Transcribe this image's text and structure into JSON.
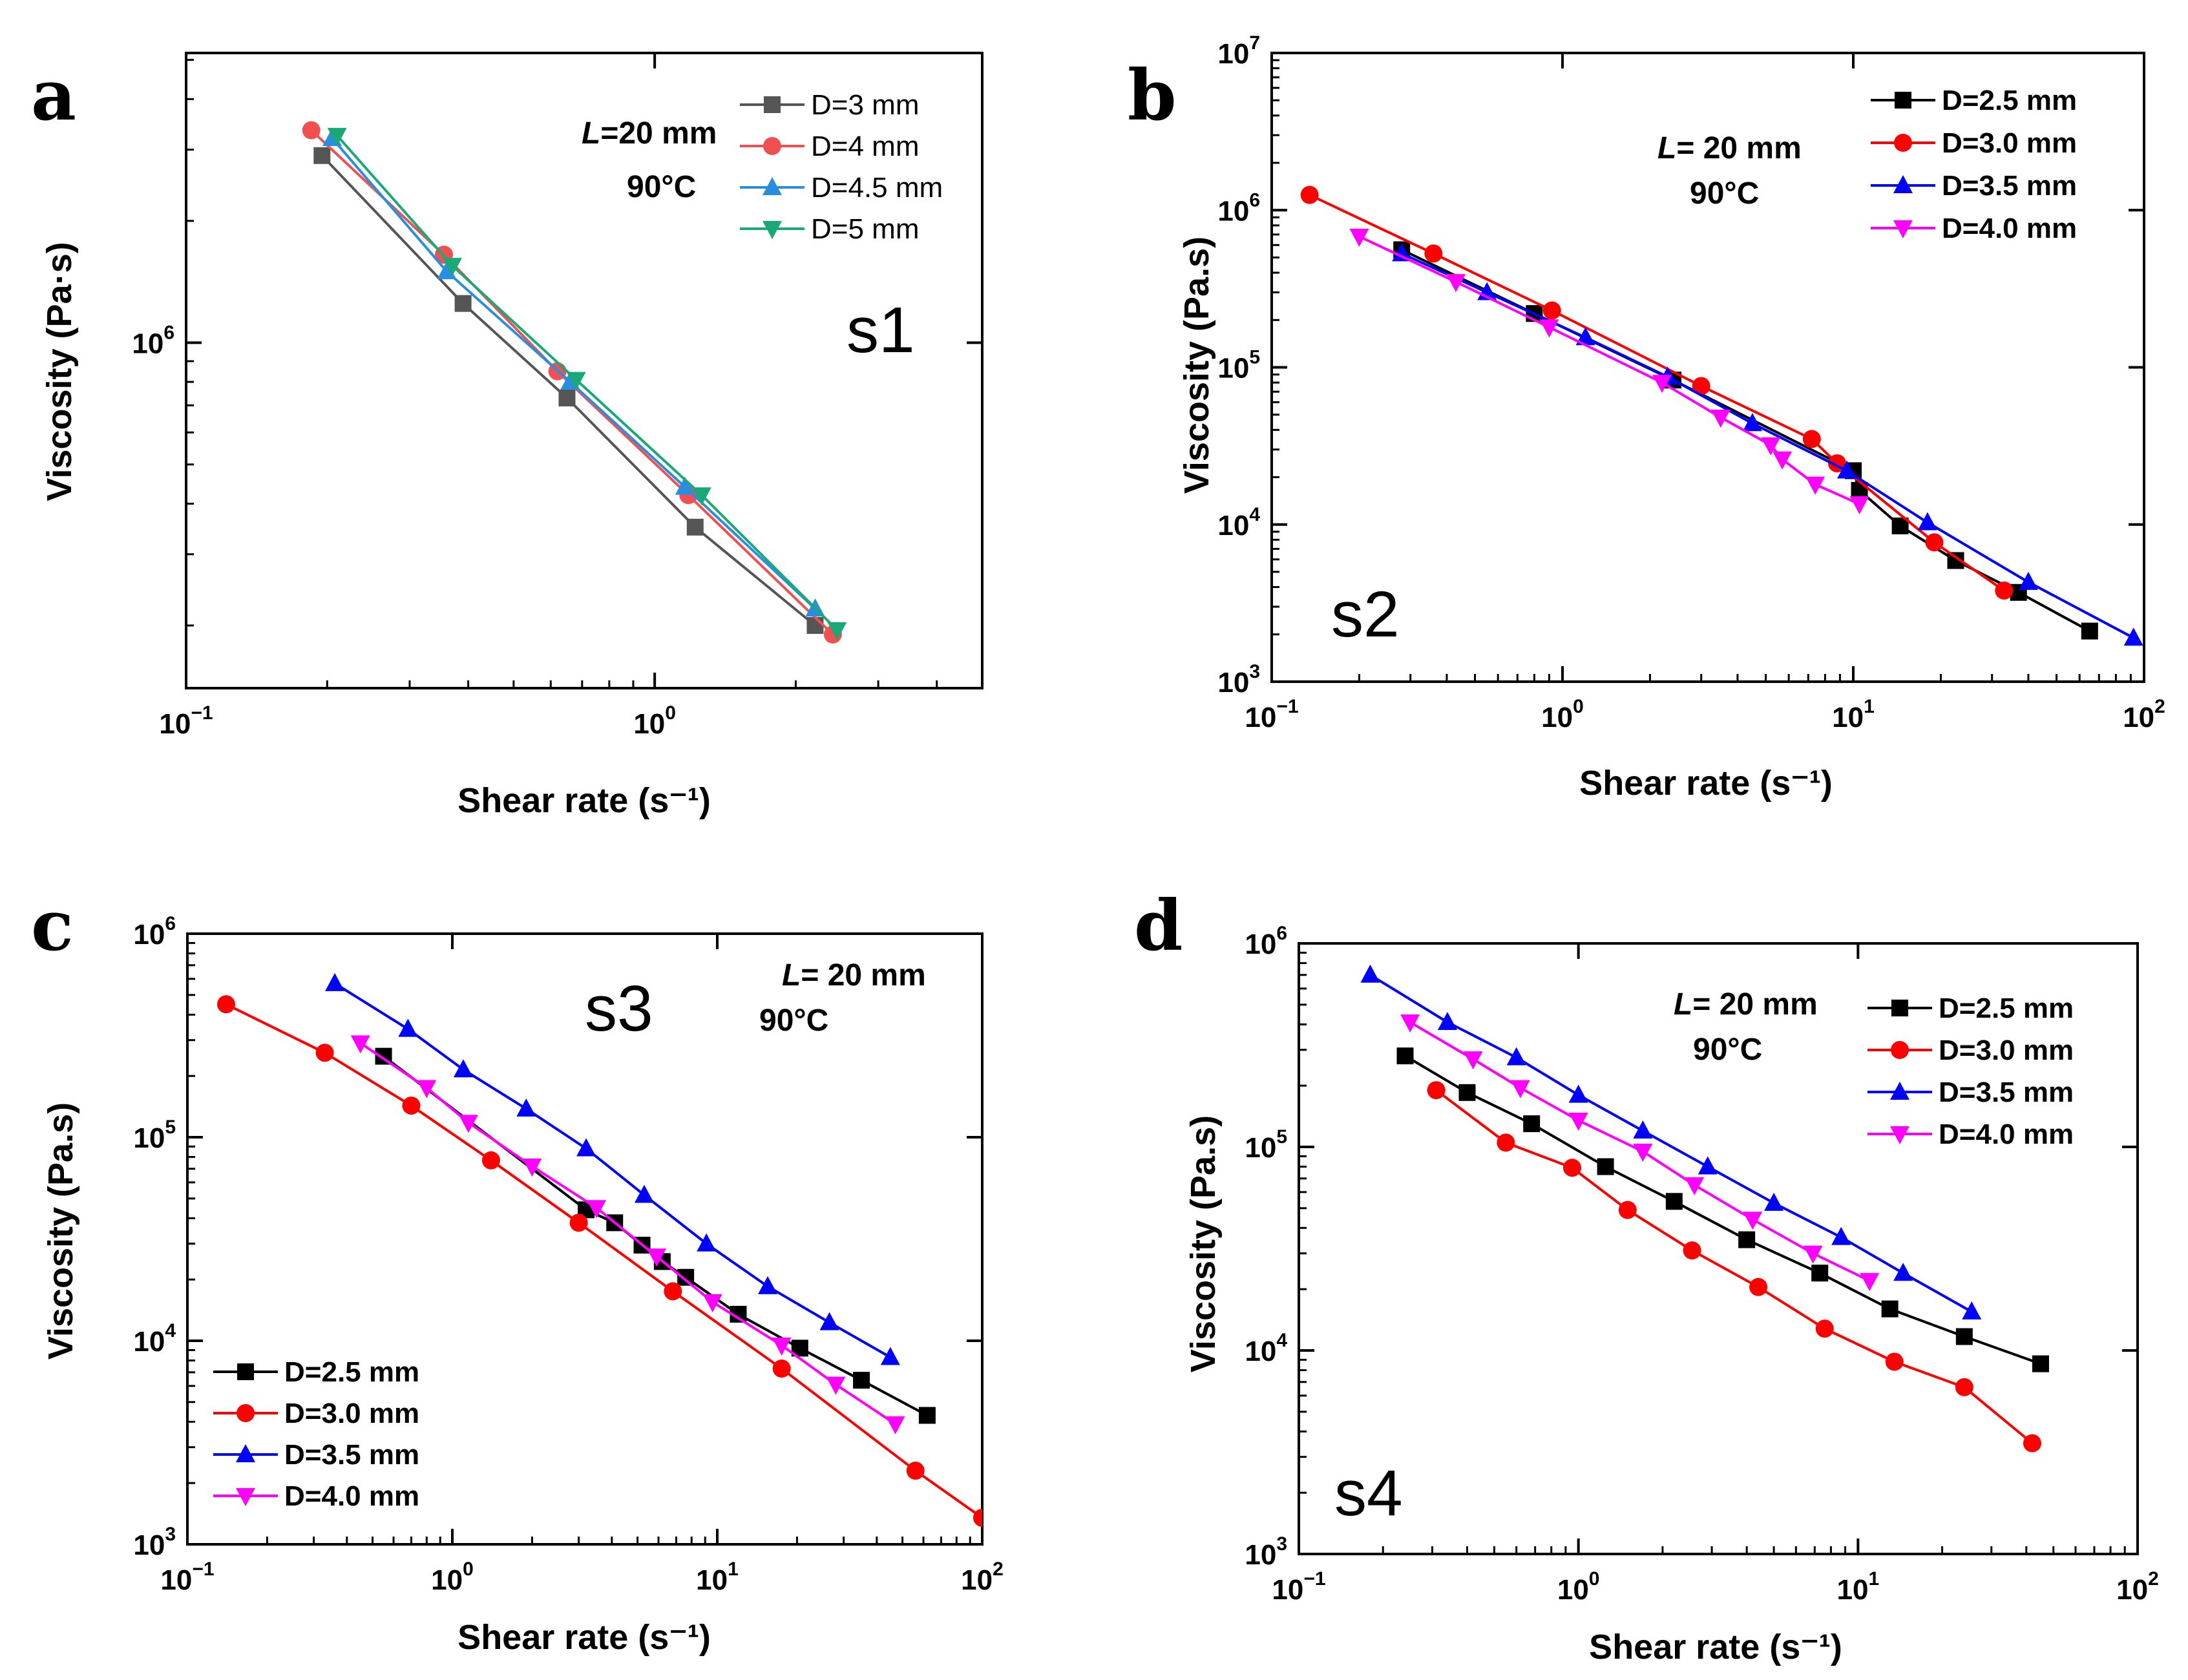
{
  "figure": {
    "panels": [
      "a",
      "b",
      "c",
      "d"
    ]
  },
  "chart_data": [
    {
      "panel": "a",
      "type": "line",
      "xscale": "log",
      "yscale": "log",
      "xlabel": "Shear rate (s⁻¹)",
      "ylabel": "Viscosity (Pa·s)",
      "xlim": [
        0.1,
        5
      ],
      "ylim": [
        140000,
        5200000
      ],
      "xticks": [
        {
          "v": 0.1,
          "mant": "10",
          "exp": "−1"
        },
        {
          "v": 1,
          "mant": "10",
          "exp": "0"
        }
      ],
      "yticks": [
        {
          "v": 1000000,
          "mant": "10",
          "exp": "6"
        }
      ],
      "minor_x": [
        0.2,
        0.3,
        0.4,
        0.5,
        0.6,
        0.7,
        0.8,
        0.9,
        2,
        3,
        4,
        5
      ],
      "minor_y": [
        200000,
        300000,
        400000,
        500000,
        600000,
        700000,
        800000,
        900000,
        2000000,
        3000000,
        4000000,
        5000000
      ],
      "annotation": {
        "L_letter": "L",
        "L_rest": "=20 mm",
        "temp": "90°C"
      },
      "sample": "s1",
      "bold_legend": false,
      "series": [
        {
          "name": "D=3 mm",
          "color": "#555555",
          "marker": "square",
          "x": [
            0.195,
            0.39,
            0.65,
            1.22,
            2.2
          ],
          "y": [
            2900000,
            1250000,
            730000,
            350000,
            200000
          ]
        },
        {
          "name": "D=4 mm",
          "color": "#f05050",
          "marker": "circle",
          "x": [
            0.185,
            0.355,
            0.62,
            1.18,
            2.4
          ],
          "y": [
            3350000,
            1650000,
            850000,
            420000,
            190000
          ]
        },
        {
          "name": "D=4.5 mm",
          "color": "#2a8ee0",
          "marker": "triangle-up",
          "x": [
            0.205,
            0.36,
            0.66,
            1.16,
            2.2
          ],
          "y": [
            3200000,
            1500000,
            800000,
            440000,
            220000
          ]
        },
        {
          "name": "D=5 mm",
          "color": "#1aa878",
          "marker": "triangle-down",
          "x": [
            0.21,
            0.37,
            0.68,
            1.26,
            2.45
          ],
          "y": [
            3250000,
            1550000,
            810000,
            420000,
            195000
          ]
        }
      ]
    },
    {
      "panel": "b",
      "type": "line",
      "xscale": "log",
      "yscale": "log",
      "xlabel": "Shear rate (s⁻¹)",
      "ylabel": "Viscosity (Pa.s)",
      "xlim": [
        0.1,
        100
      ],
      "ylim": [
        1000,
        10000000
      ],
      "xticks": [
        {
          "v": 0.1,
          "mant": "10",
          "exp": "−1"
        },
        {
          "v": 1,
          "mant": "10",
          "exp": "0"
        },
        {
          "v": 10,
          "mant": "10",
          "exp": "1"
        },
        {
          "v": 100,
          "mant": "10",
          "exp": "2"
        }
      ],
      "yticks": [
        {
          "v": 1000,
          "mant": "10",
          "exp": "3"
        },
        {
          "v": 10000,
          "mant": "10",
          "exp": "4"
        },
        {
          "v": 100000,
          "mant": "10",
          "exp": "5"
        },
        {
          "v": 1000000,
          "mant": "10",
          "exp": "6"
        },
        {
          "v": 10000000,
          "mant": "10",
          "exp": "7"
        }
      ],
      "annotation": {
        "L_letter": "L",
        "L_rest": "= 20 mm",
        "temp": "90°C"
      },
      "sample": "s2",
      "bold_legend": true,
      "series": [
        {
          "name": "D=2.5 mm",
          "color": "#000000",
          "marker": "square",
          "x": [
            0.28,
            0.8,
            2.4,
            10,
            10.5,
            14.5,
            22.5,
            37,
            65
          ],
          "y": [
            560000,
            220000,
            83000,
            22000,
            16500,
            9800,
            5900,
            3700,
            2100
          ]
        },
        {
          "name": "D=3.0 mm",
          "color": "#ff0000",
          "marker": "circle",
          "x": [
            0.135,
            0.36,
            0.92,
            3.0,
            7.2,
            8.8,
            19,
            33
          ],
          "y": [
            1250000,
            530000,
            230000,
            76000,
            35000,
            24500,
            7700,
            3800
          ]
        },
        {
          "name": "D=3.5 mm",
          "color": "#0000ff",
          "marker": "triangle-up",
          "x": [
            0.28,
            0.55,
            1.2,
            2.3,
            4.5,
            9.5,
            18,
            40,
            92
          ],
          "y": [
            530000,
            300000,
            155000,
            87000,
            44000,
            22000,
            10300,
            4300,
            1900
          ]
        },
        {
          "name": "D=4.0 mm",
          "color": "#ff00ff",
          "marker": "triangle-down",
          "x": [
            0.2,
            0.43,
            0.9,
            2.2,
            3.5,
            5.2,
            5.7,
            7.4,
            10.5
          ],
          "y": [
            680000,
            350000,
            180000,
            80000,
            48000,
            32000,
            26000,
            18000,
            13500
          ]
        }
      ]
    },
    {
      "panel": "c",
      "type": "line",
      "xscale": "log",
      "yscale": "log",
      "xlabel": "Shear rate (s⁻¹)",
      "ylabel": "Viscosity (Pa.s)",
      "xlim": [
        0.1,
        100
      ],
      "ylim": [
        1000,
        1000000
      ],
      "xticks": [
        {
          "v": 0.1,
          "mant": "10",
          "exp": "−1"
        },
        {
          "v": 1,
          "mant": "10",
          "exp": "0"
        },
        {
          "v": 10,
          "mant": "10",
          "exp": "1"
        },
        {
          "v": 100,
          "mant": "10",
          "exp": "2"
        }
      ],
      "yticks": [
        {
          "v": 1000,
          "mant": "10",
          "exp": "3"
        },
        {
          "v": 10000,
          "mant": "10",
          "exp": "4"
        },
        {
          "v": 100000,
          "mant": "10",
          "exp": "5"
        },
        {
          "v": 1000000,
          "mant": "10",
          "exp": "6"
        }
      ],
      "annotation": {
        "L_letter": "L",
        "L_rest": "= 20 mm",
        "temp": "90°C"
      },
      "sample": "s3",
      "bold_legend": true,
      "series": [
        {
          "name": "D=2.5 mm",
          "color": "#000000",
          "marker": "square",
          "x": [
            0.55,
            3.2,
            4.1,
            5.2,
            6.2,
            7.6,
            12,
            20.5,
            35,
            62
          ],
          "y": [
            250000,
            44000,
            38000,
            29500,
            24500,
            20500,
            13500,
            9200,
            6400,
            4300
          ]
        },
        {
          "name": "D=3.0 mm",
          "color": "#ff0000",
          "marker": "circle",
          "x": [
            0.14,
            0.33,
            0.7,
            1.4,
            3.0,
            6.8,
            17.5,
            56,
            100
          ],
          "y": [
            450000,
            260000,
            143000,
            77000,
            38000,
            17500,
            7300,
            2300,
            1350
          ]
        },
        {
          "name": "D=3.5 mm",
          "color": "#0000ff",
          "marker": "triangle-up",
          "x": [
            0.36,
            0.68,
            1.1,
            1.9,
            3.2,
            5.3,
            9.1,
            15.5,
            26.5,
            45
          ],
          "y": [
            570000,
            340000,
            215000,
            138000,
            88000,
            52000,
            30000,
            18500,
            12300,
            8300
          ]
        },
        {
          "name": "D=4.0 mm",
          "color": "#ff00ff",
          "marker": "triangle-down",
          "x": [
            0.45,
            0.8,
            1.15,
            2.0,
            3.5,
            5.9,
            9.6,
            17.5,
            28,
            47
          ],
          "y": [
            290000,
            175000,
            118000,
            72000,
            45000,
            26000,
            15500,
            9500,
            6100,
            3900
          ]
        }
      ]
    },
    {
      "panel": "d",
      "type": "line",
      "xscale": "log",
      "yscale": "log",
      "xlabel": "Shear rate (s⁻¹)",
      "ylabel": "Viscosity (Pa.s)",
      "xlim": [
        0.1,
        100
      ],
      "ylim": [
        1000,
        1000000
      ],
      "xticks": [
        {
          "v": 0.1,
          "mant": "10",
          "exp": "−1"
        },
        {
          "v": 1,
          "mant": "10",
          "exp": "0"
        },
        {
          "v": 10,
          "mant": "10",
          "exp": "1"
        },
        {
          "v": 100,
          "mant": "10",
          "exp": "2"
        }
      ],
      "yticks": [
        {
          "v": 1000,
          "mant": "10",
          "exp": "3"
        },
        {
          "v": 10000,
          "mant": "10",
          "exp": "4"
        },
        {
          "v": 100000,
          "mant": "10",
          "exp": "5"
        },
        {
          "v": 1000000,
          "mant": "10",
          "exp": "6"
        }
      ],
      "annotation": {
        "L_letter": "L",
        "L_rest": "= 20 mm",
        "temp": "90°C"
      },
      "sample": "s4",
      "bold_legend": true,
      "series": [
        {
          "name": "D=2.5 mm",
          "color": "#000000",
          "marker": "square",
          "x": [
            0.24,
            0.4,
            0.68,
            1.25,
            2.2,
            4.0,
            7.3,
            13,
            24,
            45
          ],
          "y": [
            280000,
            185000,
            130000,
            80000,
            54000,
            35000,
            24000,
            16000,
            11700,
            8600
          ]
        },
        {
          "name": "D=3.0 mm",
          "color": "#ff0000",
          "marker": "circle",
          "x": [
            0.31,
            0.55,
            0.95,
            1.5,
            2.55,
            4.4,
            7.6,
            13.5,
            24,
            42
          ],
          "y": [
            190000,
            105000,
            79000,
            49000,
            31000,
            20500,
            12800,
            8800,
            6600,
            3500
          ]
        },
        {
          "name": "D=3.5 mm",
          "color": "#0000ff",
          "marker": "triangle-up",
          "x": [
            0.18,
            0.34,
            0.6,
            1.0,
            1.7,
            2.9,
            5.0,
            8.7,
            14.5,
            25.5
          ],
          "y": [
            700000,
            410000,
            275000,
            180000,
            120000,
            80000,
            53000,
            36000,
            24000,
            15500
          ]
        },
        {
          "name": "D=4.0 mm",
          "color": "#ff00ff",
          "marker": "triangle-down",
          "x": [
            0.25,
            0.42,
            0.62,
            1.0,
            1.7,
            2.6,
            4.2,
            6.9,
            11
          ],
          "y": [
            410000,
            270000,
            195000,
            135000,
            95000,
            65000,
            44000,
            30000,
            22000
          ]
        }
      ]
    }
  ]
}
